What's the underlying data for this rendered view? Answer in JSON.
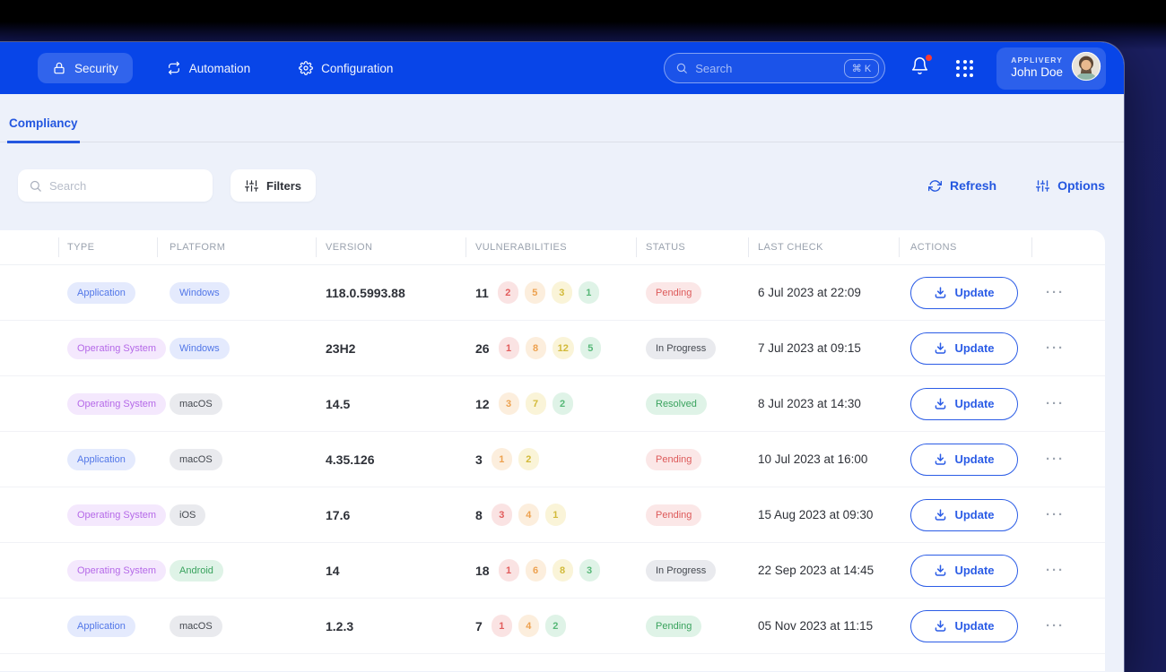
{
  "nav": {
    "items": [
      {
        "label": "Security",
        "icon": "lock-icon",
        "active": true
      },
      {
        "label": "Automation",
        "icon": "repeat-icon",
        "active": false
      },
      {
        "label": "Configuration",
        "icon": "gear-icon",
        "active": false
      }
    ],
    "search": {
      "placeholder": "Search",
      "shortcut": "⌘ K"
    },
    "notifications": {
      "unread": true
    },
    "account": {
      "org": "APPLIVERY",
      "name": "John Doe"
    }
  },
  "page": {
    "tab": "Compliancy",
    "toolbar": {
      "search_placeholder": "Search",
      "filters": "Filters",
      "refresh": "Refresh",
      "options": "Options"
    }
  },
  "table": {
    "columns": [
      "TYPE",
      "PLATFORM",
      "VERSION",
      "VULNERABILITIES",
      "STATUS",
      "LAST CHECK",
      "ACTIONS"
    ],
    "update_label": "Update",
    "row_menu": "···",
    "rows": [
      {
        "type": {
          "label": "Application",
          "variant": "blue"
        },
        "platform": {
          "label": "Windows",
          "variant": "blue"
        },
        "version": "118.0.5993.88",
        "vuln_total": "11",
        "vulnerabilities": [
          {
            "severity": "critical",
            "count": "2"
          },
          {
            "severity": "high",
            "count": "5"
          },
          {
            "severity": "medium",
            "count": "3"
          },
          {
            "severity": "low",
            "count": "1"
          }
        ],
        "status": {
          "label": "Pending",
          "variant": "red"
        },
        "last_check": "6 Jul 2023 at 22:09"
      },
      {
        "type": {
          "label": "Operating System",
          "variant": "purple"
        },
        "platform": {
          "label": "Windows",
          "variant": "blue"
        },
        "version": "23H2",
        "vuln_total": "26",
        "vulnerabilities": [
          {
            "severity": "critical",
            "count": "1"
          },
          {
            "severity": "high",
            "count": "8"
          },
          {
            "severity": "medium",
            "count": "12"
          },
          {
            "severity": "low",
            "count": "5"
          }
        ],
        "status": {
          "label": "In Progress",
          "variant": "gray"
        },
        "last_check": "7 Jul 2023 at 09:15"
      },
      {
        "type": {
          "label": "Operating System",
          "variant": "purple"
        },
        "platform": {
          "label": "macOS",
          "variant": "gray"
        },
        "version": "14.5",
        "vuln_total": "12",
        "vulnerabilities": [
          {
            "severity": "high",
            "count": "3"
          },
          {
            "severity": "medium",
            "count": "7"
          },
          {
            "severity": "low",
            "count": "2"
          }
        ],
        "status": {
          "label": "Resolved",
          "variant": "green"
        },
        "last_check": "8 Jul 2023 at 14:30"
      },
      {
        "type": {
          "label": "Application",
          "variant": "blue"
        },
        "platform": {
          "label": "macOS",
          "variant": "gray"
        },
        "version": "4.35.126",
        "vuln_total": "3",
        "vulnerabilities": [
          {
            "severity": "high",
            "count": "1"
          },
          {
            "severity": "medium",
            "count": "2"
          }
        ],
        "status": {
          "label": "Pending",
          "variant": "red"
        },
        "last_check": "10 Jul 2023 at 16:00"
      },
      {
        "type": {
          "label": "Operating System",
          "variant": "purple"
        },
        "platform": {
          "label": "iOS",
          "variant": "gray"
        },
        "version": "17.6",
        "vuln_total": "8",
        "vulnerabilities": [
          {
            "severity": "critical",
            "count": "3"
          },
          {
            "severity": "high",
            "count": "4"
          },
          {
            "severity": "medium",
            "count": "1"
          }
        ],
        "status": {
          "label": "Pending",
          "variant": "red"
        },
        "last_check": "15 Aug 2023 at 09:30"
      },
      {
        "type": {
          "label": "Operating System",
          "variant": "purple"
        },
        "platform": {
          "label": "Android",
          "variant": "green"
        },
        "version": "14",
        "vuln_total": "18",
        "vulnerabilities": [
          {
            "severity": "critical",
            "count": "1"
          },
          {
            "severity": "high",
            "count": "6"
          },
          {
            "severity": "medium",
            "count": "8"
          },
          {
            "severity": "low",
            "count": "3"
          }
        ],
        "status": {
          "label": "In Progress",
          "variant": "gray"
        },
        "last_check": "22 Sep 2023 at 14:45"
      },
      {
        "type": {
          "label": "Application",
          "variant": "blue"
        },
        "platform": {
          "label": "macOS",
          "variant": "gray"
        },
        "version": "1.2.3",
        "vuln_total": "7",
        "vulnerabilities": [
          {
            "severity": "critical",
            "count": "1"
          },
          {
            "severity": "high",
            "count": "4"
          },
          {
            "severity": "low",
            "count": "2"
          }
        ],
        "status": {
          "label": "Pending",
          "variant": "green"
        },
        "last_check": "05 Nov 2023 at 11:15"
      }
    ]
  },
  "colors": {
    "nav_blue": "#0845E8",
    "accent_blue": "#2457E0",
    "page_bg": "#EDF1FA",
    "backdrop_navy": "#1B1F61",
    "severity_critical": "#E25C5C",
    "severity_high": "#EDA14F",
    "severity_medium": "#D2BA3A",
    "severity_low": "#57B878",
    "status_red": "#DD5A5A",
    "status_gray": "#44484F",
    "status_green": "#3AA35E",
    "notification_dot": "#FF3B30"
  }
}
